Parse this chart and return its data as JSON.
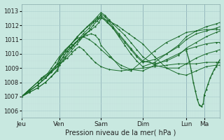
{
  "xlabel": "Pression niveau de la mer( hPa )",
  "bg_color": "#c8e8e0",
  "grid_color_minor": "#d0e8e0",
  "grid_color_major": "#b0d8d0",
  "line_color": "#1a6b2a",
  "ylim": [
    1005.5,
    1013.5
  ],
  "yticks": [
    1006,
    1007,
    1008,
    1009,
    1010,
    1011,
    1012,
    1013
  ],
  "day_labels": [
    "Jeu",
    "Ven",
    "Sam",
    "Dim",
    "Lun",
    "Ma"
  ],
  "day_positions": [
    0.0,
    0.19,
    0.4,
    0.61,
    0.83,
    0.92
  ],
  "xlim": [
    0.0,
    1.0
  ],
  "series": [
    {
      "x": [
        0.0,
        0.04,
        0.08,
        0.1,
        0.13,
        0.15,
        0.17,
        0.19,
        0.21,
        0.23,
        0.25,
        0.27,
        0.29,
        0.31,
        0.33,
        0.35,
        0.37,
        0.4,
        0.44,
        0.5,
        0.55,
        0.61,
        0.67,
        0.73,
        0.79,
        0.83,
        0.88,
        0.93,
        0.98,
        1.0
      ],
      "y": [
        1007.0,
        1007.5,
        1008.0,
        1008.2,
        1008.5,
        1008.7,
        1009.0,
        1009.2,
        1009.5,
        1009.7,
        1010.0,
        1010.3,
        1010.5,
        1010.3,
        1010.0,
        1009.7,
        1009.4,
        1009.1,
        1008.9,
        1008.8,
        1008.9,
        1009.0,
        1009.1,
        1009.2,
        1009.3,
        1009.3,
        1009.3,
        1009.4,
        1009.4,
        1009.4
      ]
    },
    {
      "x": [
        0.0,
        0.04,
        0.08,
        0.1,
        0.13,
        0.15,
        0.17,
        0.19,
        0.22,
        0.25,
        0.28,
        0.31,
        0.34,
        0.37,
        0.4,
        0.44,
        0.5,
        0.55,
        0.61,
        0.67,
        0.73,
        0.79,
        0.83,
        0.88,
        0.93,
        0.98,
        1.0
      ],
      "y": [
        1007.0,
        1007.5,
        1008.0,
        1008.3,
        1008.6,
        1009.0,
        1009.4,
        1009.8,
        1010.3,
        1010.7,
        1011.1,
        1011.2,
        1011.0,
        1010.7,
        1010.3,
        1009.8,
        1009.2,
        1008.9,
        1008.8,
        1009.2,
        1009.6,
        1010.0,
        1010.3,
        1010.5,
        1010.7,
        1010.8,
        1010.8
      ]
    },
    {
      "x": [
        0.0,
        0.04,
        0.08,
        0.11,
        0.14,
        0.17,
        0.19,
        0.21,
        0.23,
        0.25,
        0.27,
        0.29,
        0.31,
        0.33,
        0.35,
        0.37,
        0.39,
        0.4,
        0.45,
        0.5,
        0.55,
        0.61,
        0.67,
        0.73,
        0.79,
        0.83,
        0.88,
        0.93,
        0.98,
        1.0
      ],
      "y": [
        1007.0,
        1007.5,
        1008.0,
        1008.4,
        1008.7,
        1009.1,
        1009.4,
        1009.8,
        1010.2,
        1010.5,
        1010.8,
        1011.0,
        1011.2,
        1011.3,
        1011.4,
        1011.3,
        1011.0,
        1010.6,
        1009.8,
        1009.0,
        1008.8,
        1009.5,
        1010.2,
        1010.8,
        1011.2,
        1011.5,
        1011.6,
        1011.7,
        1011.7,
        1011.7
      ]
    },
    {
      "x": [
        0.0,
        0.04,
        0.08,
        0.12,
        0.15,
        0.18,
        0.19,
        0.21,
        0.23,
        0.26,
        0.29,
        0.32,
        0.35,
        0.37,
        0.39,
        0.4,
        0.44,
        0.48,
        0.51,
        0.54,
        0.57,
        0.61,
        0.67,
        0.73,
        0.79,
        0.83,
        0.88,
        0.93,
        0.98,
        1.0
      ],
      "y": [
        1007.0,
        1007.4,
        1007.8,
        1008.3,
        1008.7,
        1009.1,
        1009.4,
        1009.8,
        1010.2,
        1010.6,
        1011.0,
        1011.4,
        1011.7,
        1011.9,
        1012.2,
        1012.5,
        1012.3,
        1012.0,
        1011.7,
        1011.4,
        1011.1,
        1010.7,
        1009.8,
        1009.0,
        1008.6,
        1008.5,
        1008.8,
        1009.1,
        1009.2,
        1009.2
      ]
    },
    {
      "x": [
        0.0,
        0.04,
        0.08,
        0.12,
        0.15,
        0.18,
        0.19,
        0.21,
        0.24,
        0.27,
        0.3,
        0.33,
        0.36,
        0.38,
        0.4,
        0.42,
        0.44,
        0.46,
        0.49,
        0.52,
        0.55,
        0.58,
        0.61,
        0.67,
        0.73,
        0.79,
        0.83,
        0.88,
        0.93,
        0.98,
        1.0
      ],
      "y": [
        1007.0,
        1007.4,
        1007.8,
        1008.3,
        1008.8,
        1009.3,
        1009.6,
        1010.0,
        1010.5,
        1011.0,
        1011.5,
        1011.9,
        1012.3,
        1012.6,
        1012.9,
        1012.7,
        1012.4,
        1012.1,
        1011.7,
        1011.3,
        1010.8,
        1010.3,
        1009.8,
        1009.2,
        1009.0,
        1009.0,
        1009.3,
        1009.7,
        1010.0,
        1010.2,
        1010.3
      ]
    },
    {
      "x": [
        0.0,
        0.04,
        0.08,
        0.12,
        0.15,
        0.18,
        0.19,
        0.22,
        0.25,
        0.28,
        0.31,
        0.34,
        0.37,
        0.39,
        0.4,
        0.42,
        0.44,
        0.46,
        0.49,
        0.52,
        0.55,
        0.58,
        0.61,
        0.67,
        0.73,
        0.79,
        0.83,
        0.88,
        0.93,
        0.98,
        1.0
      ],
      "y": [
        1007.0,
        1007.4,
        1007.8,
        1008.3,
        1008.8,
        1009.3,
        1009.7,
        1010.2,
        1010.7,
        1011.2,
        1011.6,
        1012.0,
        1012.3,
        1012.5,
        1012.8,
        1012.6,
        1012.3,
        1011.9,
        1011.4,
        1010.9,
        1010.4,
        1009.9,
        1009.5,
        1009.3,
        1009.5,
        1009.9,
        1010.4,
        1010.8,
        1011.2,
        1011.5,
        1011.6
      ]
    },
    {
      "x": [
        0.0,
        0.04,
        0.08,
        0.12,
        0.15,
        0.18,
        0.19,
        0.22,
        0.25,
        0.28,
        0.31,
        0.34,
        0.36,
        0.38,
        0.4,
        0.43,
        0.46,
        0.49,
        0.52,
        0.55,
        0.58,
        0.61,
        0.67,
        0.73,
        0.79,
        0.83,
        0.88,
        0.93,
        0.98,
        1.0
      ],
      "y": [
        1007.0,
        1007.3,
        1007.6,
        1008.0,
        1008.4,
        1008.8,
        1009.2,
        1009.7,
        1010.2,
        1010.7,
        1011.2,
        1011.6,
        1012.0,
        1012.3,
        1012.6,
        1012.2,
        1011.8,
        1011.3,
        1010.8,
        1010.3,
        1009.8,
        1009.4,
        1009.6,
        1010.0,
        1010.5,
        1011.0,
        1011.4,
        1011.6,
        1011.8,
        1011.9
      ]
    },
    {
      "x": [
        0.0,
        0.04,
        0.08,
        0.12,
        0.15,
        0.18,
        0.19,
        0.22,
        0.25,
        0.28,
        0.31,
        0.34,
        0.36,
        0.38,
        0.4,
        0.43,
        0.46,
        0.49,
        0.52,
        0.55,
        0.58,
        0.61,
        0.67,
        0.73,
        0.79,
        0.83,
        0.88,
        0.93,
        0.98,
        1.0
      ],
      "y": [
        1007.0,
        1007.3,
        1007.6,
        1008.0,
        1008.4,
        1008.9,
        1009.3,
        1009.8,
        1010.4,
        1010.9,
        1011.4,
        1011.8,
        1012.2,
        1012.5,
        1012.7,
        1012.3,
        1011.8,
        1011.2,
        1010.6,
        1010.0,
        1009.5,
        1009.1,
        1009.4,
        1010.0,
        1010.6,
        1011.2,
        1011.6,
        1011.9,
        1012.1,
        1012.2
      ]
    }
  ],
  "lun_segment_x": [
    0.83,
    0.845,
    0.855,
    0.865,
    0.875,
    0.885,
    0.895,
    0.905,
    0.915,
    0.92
  ],
  "lun_segment_y": [
    1010.2,
    1009.5,
    1008.8,
    1008.0,
    1007.4,
    1006.8,
    1006.4,
    1006.3,
    1006.5,
    1007.1
  ],
  "ma_segment_x": [
    0.92,
    0.93,
    0.94,
    0.95,
    0.96,
    0.97,
    0.98,
    0.99,
    1.0
  ],
  "ma_segment_y": [
    1007.1,
    1007.5,
    1007.9,
    1008.3,
    1008.6,
    1008.9,
    1009.1,
    1009.4,
    1009.6
  ]
}
